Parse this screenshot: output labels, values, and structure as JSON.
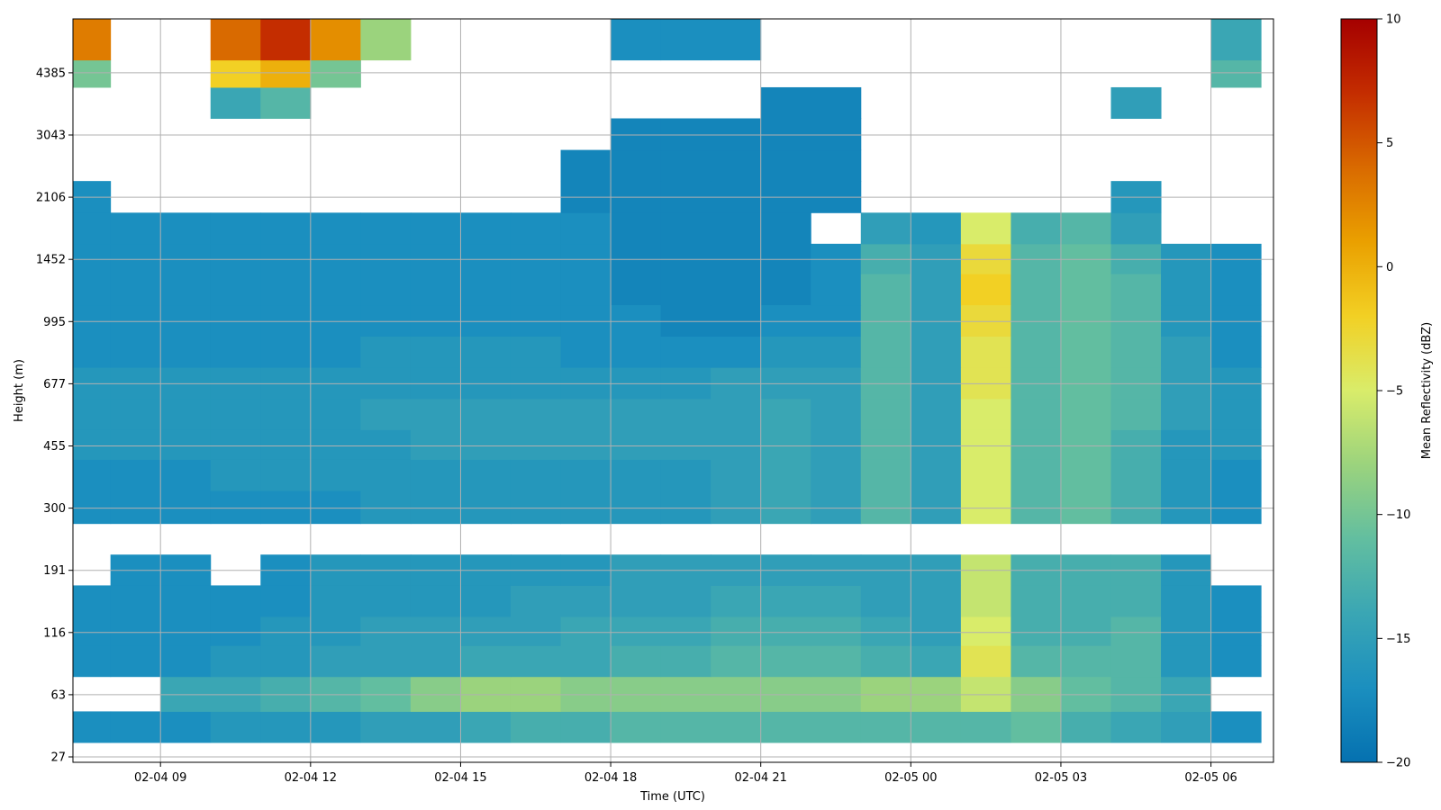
{
  "chart_data": {
    "type": "heatmap",
    "title": "",
    "xlabel": "Time (UTC)",
    "ylabel": "Height (m)",
    "x_tick_labels": [
      "02-04 09",
      "02-04 12",
      "02-04 15",
      "02-04 18",
      "02-04 21",
      "02-05 00",
      "02-05 03",
      "02-05 06"
    ],
    "x_tick_hours": [
      9,
      12,
      15,
      18,
      21,
      24,
      27,
      30
    ],
    "xlim_hours": [
      7.25,
      31.25
    ],
    "y_tick_labels": [
      "27",
      "63",
      "116",
      "191",
      "300",
      "455",
      "677",
      "995",
      "1452",
      "2106",
      "3043",
      "4385"
    ],
    "grid": true,
    "colorbar": {
      "label": "Mean Reflectivity (dBZ)",
      "vmin": -20,
      "vmax": 10,
      "ticks": [
        "10",
        "5",
        "0",
        "−5",
        "−10",
        "−15",
        "−20"
      ],
      "colormap": [
        "#0571b0",
        "#1b8fbf",
        "#3aa6b4",
        "#62bea0",
        "#9bd37d",
        "#d9ec6a",
        "#f2d024",
        "#eaa000",
        "#d96a00",
        "#c42d00",
        "#a50000"
      ]
    },
    "hours": [
      7.5,
      8.5,
      9.5,
      10.5,
      11.5,
      12.5,
      13.5,
      14.5,
      15.5,
      16.5,
      17.5,
      18.5,
      19.5,
      20.5,
      21.5,
      22.5,
      23.5,
      24.5,
      25.5,
      26.5,
      27.5,
      28.5,
      29.5,
      30.5
    ],
    "levels_m": [
      27,
      40,
      63,
      90,
      116,
      150,
      191,
      240,
      300,
      380,
      455,
      560,
      677,
      830,
      995,
      1220,
      1452,
      1750,
      2106,
      2550,
      3043,
      3700,
      4385,
      5100
    ],
    "values_dbz": [
      [
        null,
        null,
        null,
        null,
        null,
        null,
        null,
        null,
        null,
        null,
        null,
        null,
        null,
        null,
        null,
        null,
        null,
        null,
        null,
        null,
        null,
        null,
        null,
        null
      ],
      [
        -17,
        -17,
        -17,
        -16,
        -16,
        -16,
        -15,
        -15,
        -14,
        -13,
        -13,
        -12,
        -12,
        -12,
        -12,
        -12,
        -12,
        -12,
        -12,
        -11,
        -13,
        -14,
        -15,
        -17
      ],
      [
        null,
        null,
        -14,
        -14,
        -13,
        -12,
        -11,
        -9,
        -8,
        -8,
        -9,
        -9,
        -9,
        -9,
        -9,
        -9,
        -8,
        -8,
        -6,
        -9,
        -11,
        -12,
        -14,
        null
      ],
      [
        -17,
        -17,
        -17,
        -16,
        -16,
        -15,
        -15,
        -15,
        -14,
        -14,
        -14,
        -13,
        -13,
        -12,
        -12,
        -12,
        -13,
        -14,
        -4,
        -12,
        -12,
        -12,
        -16,
        -17
      ],
      [
        -17,
        -17,
        -17,
        -17,
        -16,
        -16,
        -15,
        -15,
        -15,
        -15,
        -14,
        -14,
        -14,
        -13,
        -13,
        -13,
        -14,
        -15,
        -5,
        -13,
        -13,
        -12,
        -16,
        -17
      ],
      [
        -17,
        -17,
        -17,
        -17,
        -17,
        -16,
        -16,
        -16,
        -16,
        -15,
        -15,
        -15,
        -15,
        -14,
        -14,
        -14,
        -15,
        -15,
        -6,
        -13,
        -13,
        -13,
        -16,
        -17
      ],
      [
        null,
        -17,
        -17,
        null,
        -17,
        -16,
        -16,
        -16,
        -16,
        -16,
        -16,
        -15,
        -15,
        -15,
        -15,
        -15,
        -15,
        -15,
        -6,
        -13,
        -13,
        -13,
        -16,
        null
      ],
      [
        null,
        null,
        null,
        null,
        null,
        null,
        null,
        null,
        null,
        null,
        null,
        null,
        null,
        null,
        null,
        null,
        null,
        null,
        null,
        null,
        null,
        null,
        null,
        null
      ],
      [
        -17,
        -17,
        -17,
        -17,
        -17,
        -17,
        -16,
        -16,
        -16,
        -16,
        -16,
        -16,
        -16,
        -15,
        -14,
        -15,
        -12,
        -15,
        -5,
        -12,
        -11,
        -13,
        -16,
        -17
      ],
      [
        -17,
        -17,
        -17,
        -16,
        -16,
        -16,
        -16,
        -16,
        -16,
        -16,
        -16,
        -16,
        -16,
        -15,
        -14,
        -15,
        -12,
        -15,
        -5,
        -12,
        -11,
        -13,
        -16,
        -17
      ],
      [
        -16,
        -16,
        -16,
        -16,
        -16,
        -16,
        -16,
        -15,
        -15,
        -15,
        -15,
        -15,
        -15,
        -15,
        -14,
        -15,
        -12,
        -15,
        -5,
        -12,
        -11,
        -13,
        -16,
        -16
      ],
      [
        -16,
        -16,
        -16,
        -16,
        -16,
        -16,
        -15,
        -15,
        -15,
        -15,
        -15,
        -15,
        -15,
        -15,
        -14,
        -15,
        -12,
        -15,
        -5,
        -12,
        -11,
        -12,
        -15,
        -16
      ],
      [
        -16,
        -16,
        -16,
        -16,
        -16,
        -16,
        -16,
        -16,
        -16,
        -16,
        -16,
        -16,
        -16,
        -15,
        -15,
        -15,
        -12,
        -15,
        -4,
        -12,
        -11,
        -12,
        -15,
        -16
      ],
      [
        -17,
        -17,
        -17,
        -17,
        -17,
        -17,
        -16,
        -16,
        -16,
        -16,
        -17,
        -17,
        -17,
        -17,
        -16,
        -16,
        -12,
        -15,
        -4,
        -12,
        -11,
        -12,
        -15,
        -17
      ],
      [
        -17,
        -17,
        -17,
        -17,
        -17,
        -17,
        -17,
        -17,
        -17,
        -17,
        -17,
        -17,
        -18,
        -18,
        -17,
        -17,
        -12,
        -15,
        -3,
        -12,
        -11,
        -12,
        -16,
        -17
      ],
      [
        -17,
        -17,
        -17,
        -17,
        -17,
        -17,
        -17,
        -17,
        -17,
        -17,
        -17,
        -18,
        -18,
        -18,
        -18,
        -17,
        -12,
        -15,
        -2,
        -12,
        -11,
        -12,
        -16,
        -17
      ],
      [
        -17,
        -17,
        -17,
        -17,
        -17,
        -17,
        -17,
        -17,
        -17,
        -17,
        -17,
        -18,
        -18,
        -18,
        -18,
        -17,
        -13,
        -15,
        -3,
        -12,
        -11,
        -13,
        -16,
        -17
      ],
      [
        -17,
        -17,
        -17,
        -17,
        -17,
        -17,
        -17,
        -17,
        -17,
        -17,
        -17,
        -18,
        -18,
        -18,
        -18,
        null,
        -15,
        -16,
        -5,
        -13,
        -12,
        -15,
        null,
        null
      ],
      [
        -17,
        null,
        null,
        null,
        null,
        null,
        null,
        null,
        null,
        null,
        -18,
        -18,
        -18,
        -18,
        -18,
        -18,
        null,
        null,
        null,
        null,
        null,
        -16,
        null,
        null
      ],
      [
        null,
        null,
        null,
        null,
        null,
        null,
        null,
        null,
        null,
        null,
        -18,
        -18,
        -18,
        -18,
        -18,
        -18,
        null,
        null,
        null,
        null,
        null,
        null,
        null,
        null
      ],
      [
        null,
        null,
        null,
        null,
        null,
        null,
        null,
        null,
        null,
        null,
        null,
        -18,
        -18,
        -18,
        -18,
        -18,
        null,
        null,
        null,
        null,
        null,
        null,
        null,
        null
      ],
      [
        null,
        null,
        null,
        -14,
        -12,
        null,
        null,
        null,
        null,
        null,
        null,
        null,
        null,
        null,
        -18,
        -18,
        null,
        null,
        null,
        null,
        null,
        -15,
        null,
        null
      ],
      [
        -10,
        null,
        null,
        -2,
        0,
        -10,
        null,
        null,
        null,
        null,
        null,
        null,
        null,
        null,
        null,
        null,
        null,
        null,
        null,
        null,
        null,
        null,
        null,
        -12
      ],
      [
        3,
        null,
        null,
        4,
        7,
        2,
        -8,
        null,
        null,
        null,
        null,
        -17,
        -17,
        -17,
        null,
        null,
        null,
        null,
        null,
        null,
        null,
        null,
        null,
        -14
      ]
    ]
  }
}
